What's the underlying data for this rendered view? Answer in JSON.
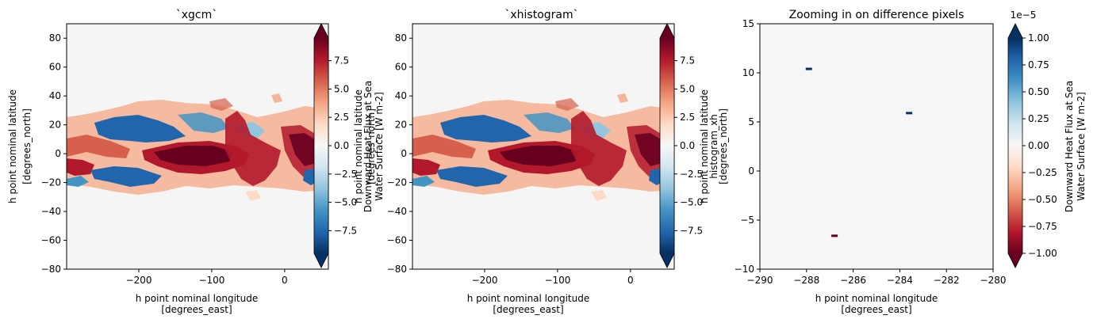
{
  "chart_data": [
    {
      "type": "heatmap",
      "title": "`xgcm`",
      "xlabel_line1": "h point nominal longitude",
      "xlabel_line2": "[degrees_east]",
      "ylabel_line1": "h point nominal latitude",
      "ylabel_line2": "[degrees_north]",
      "xlim": [
        -299,
        60
      ],
      "ylim": [
        -80,
        90
      ],
      "xticks": [
        -200,
        -100,
        0
      ],
      "yticks": [
        -80,
        -60,
        -40,
        -20,
        0,
        20,
        40,
        60,
        80
      ],
      "cmap": "RdBu_r",
      "colorbar": {
        "range": [
          -9.5,
          9.5
        ],
        "ticks": [
          -7.5,
          -5.0,
          -2.5,
          0.0,
          2.5,
          5.0,
          7.5
        ],
        "tick_labels": [
          "−7.5",
          "−5.0",
          "−2.5",
          "0.0",
          "2.5",
          "5.0",
          "7.5"
        ],
        "extend": "both",
        "label_overlap_1": "h point nominal latitude",
        "label_overlap_2": "Downward Heat Flux at Sea",
        "label_overlap_3": "Water Surface [W m-2]",
        "label_overlap_4": "[degrees_north]"
      }
    },
    {
      "type": "heatmap",
      "title": "`xhistogram`",
      "xlabel_line1": "h point nominal longitude",
      "xlabel_line2": "[degrees_east]",
      "xlim": [
        -299,
        60
      ],
      "ylim": [
        -80,
        90
      ],
      "xticks": [
        -200,
        -100,
        0
      ],
      "yticks": [
        -80,
        -60,
        -40,
        -20,
        0,
        20,
        40,
        60,
        80
      ],
      "cmap": "RdBu_r",
      "colorbar": {
        "range": [
          -9.5,
          9.5
        ],
        "ticks": [
          -7.5,
          -5.0,
          -2.5,
          0.0,
          2.5,
          5.0,
          7.5
        ],
        "tick_labels": [
          "−7.5",
          "−5.0",
          "−2.5",
          "0.0",
          "2.5",
          "5.0",
          "7.5"
        ],
        "extend": "both",
        "label_overlap_1": "h point nominal latitude",
        "label_overlap_2": "histogram_xh",
        "label_overlap_3": "[degrees_north]"
      }
    },
    {
      "type": "heatmap",
      "title": "Zooming in on difference pixels",
      "xlabel_line1": "h point nominal longitude",
      "xlabel_line2": "[degrees_east]",
      "xlim": [
        -290,
        -280
      ],
      "ylim": [
        -10,
        15
      ],
      "xticks": [
        -290,
        -288,
        -286,
        -284,
        -282,
        -280
      ],
      "yticks": [
        -10,
        -5,
        0,
        5,
        10,
        15
      ],
      "cmap": "RdBu",
      "pixels": [
        {
          "x": -287.9,
          "y": 10.4,
          "sign": "positive"
        },
        {
          "x": -283.6,
          "y": 5.9,
          "sign": "positive"
        },
        {
          "x": -286.8,
          "y": -6.6,
          "sign": "negative"
        }
      ],
      "colorbar": {
        "range": [
          -1.0,
          1.0
        ],
        "ticks": [
          -1.0,
          -0.75,
          -0.5,
          -0.25,
          0.0,
          0.25,
          0.5,
          0.75,
          1.0
        ],
        "tick_labels": [
          "−1.00",
          "−0.75",
          "−0.50",
          "−0.25",
          "0.00",
          "0.25",
          "0.50",
          "0.75",
          "1.00"
        ],
        "extend": "both",
        "offset_text": "1e−5",
        "label_line1": "Downward Heat Flux at Sea",
        "label_line2": "Water Surface [W m-2]"
      }
    }
  ]
}
